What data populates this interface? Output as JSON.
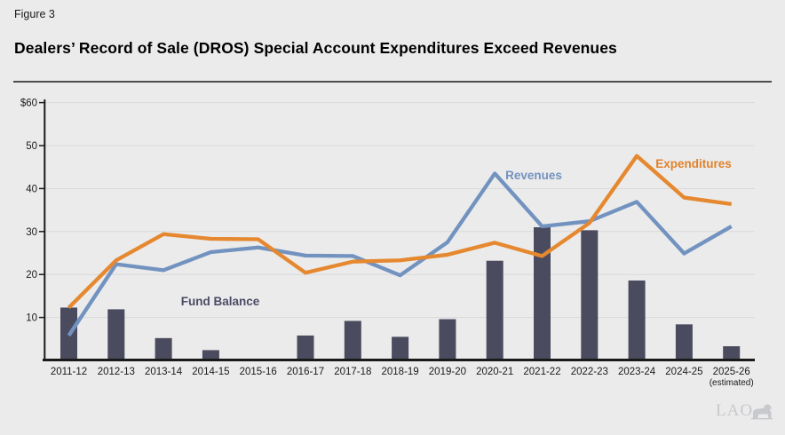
{
  "figure": {
    "label": "Figure 3",
    "title": "Dealers’ Record of Sale (DROS) Special Account Expenditures Exceed Revenues"
  },
  "logo": {
    "text": "LAO",
    "icon": "bear-icon",
    "color": "#c7c9cc"
  },
  "chart_data": {
    "type": "bar+line",
    "title": "Dealers’ Record of Sale (DROS) Special Account Expenditures Exceed Revenues",
    "categories": [
      "2011-12",
      "2012-13",
      "2013-14",
      "2014-15",
      "2015-16",
      "2016-17",
      "2017-18",
      "2018-19",
      "2019-20",
      "2020-21",
      "2021-22",
      "2022-23",
      "2023-24",
      "2024-25",
      "2025-26"
    ],
    "category_footnote": {
      "category": "2025-26",
      "text": "(estimated)"
    },
    "y_axis": {
      "ylim": [
        0,
        60
      ],
      "ticks": [
        {
          "value": 60,
          "label": "$60"
        },
        {
          "value": 50,
          "label": "50"
        },
        {
          "value": 40,
          "label": "40"
        },
        {
          "value": 30,
          "label": "30"
        },
        {
          "value": 20,
          "label": "20"
        },
        {
          "value": 10,
          "label": "10"
        }
      ]
    },
    "grid": true,
    "legend_position": "inline-annotations",
    "bar_series": {
      "name": "Fund Balance",
      "color": "#4b4b5f",
      "values": [
        12.3,
        11.9,
        5.2,
        2.4,
        0.3,
        5.8,
        9.2,
        5.5,
        9.6,
        23.2,
        31.0,
        30.3,
        18.6,
        8.4,
        3.3
      ]
    },
    "line_series": [
      {
        "name": "Revenues",
        "color": "#7292c0",
        "values": [
          5.8,
          22.4,
          21.0,
          25.2,
          26.3,
          24.4,
          24.3,
          19.8,
          27.5,
          43.5,
          31.2,
          32.4,
          36.9,
          24.9,
          31.2
        ]
      },
      {
        "name": "Expenditures",
        "color": "#e5882f",
        "values": [
          12.3,
          23.3,
          29.4,
          28.3,
          28.2,
          20.4,
          23.0,
          23.3,
          24.6,
          27.4,
          24.3,
          32.0,
          47.6,
          37.9,
          36.4
        ]
      }
    ],
    "annotations": [
      {
        "text": "Fund Balance",
        "color": "#4b4b66",
        "x": 248,
        "y": 344
      },
      {
        "text": "Revenues",
        "color": "#7292c0",
        "x": 601,
        "y": 202
      },
      {
        "text": "Expenditures",
        "color": "#e0822a",
        "x": 781,
        "y": 189
      }
    ],
    "colors": {
      "background": "#ebebeb",
      "gridline": "#d9d9d9",
      "axis": "#1a1a1a",
      "tick_label": "#1a1a1a"
    }
  }
}
